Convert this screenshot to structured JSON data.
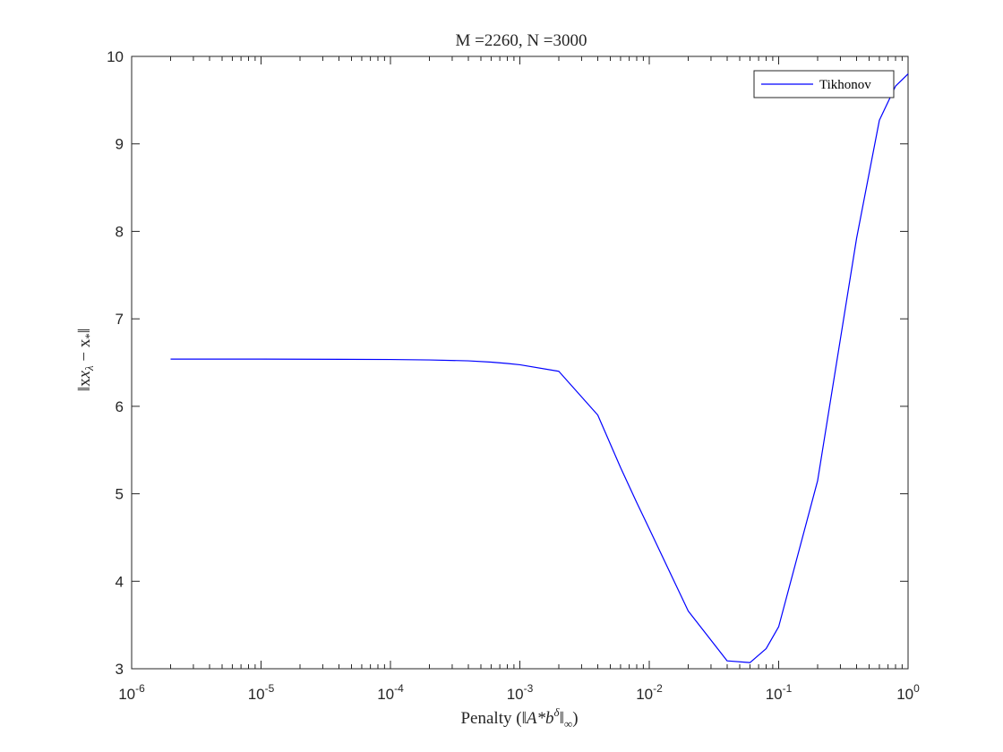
{
  "chart_data": {
    "type": "line",
    "title": "M =2260, N =3000",
    "xlabel_prefix": "Penalty (",
    "xlabel_math": "‖A*b",
    "xlabel_sup": "δ",
    "xlabel_suffix": "‖",
    "xlabel_sub": "∞",
    "xlabel_close": ")",
    "ylabel_left": "‖x",
    "ylabel_sub1": "λ",
    "ylabel_mid": " − x",
    "ylabel_sub2": "*",
    "ylabel_right": "‖",
    "x_scale": "log",
    "xlim": [
      1e-06,
      1
    ],
    "ylim": [
      3,
      10
    ],
    "x_ticks": [
      {
        "base": "10",
        "exp": "-6",
        "value": 1e-06
      },
      {
        "base": "10",
        "exp": "-5",
        "value": 1e-05
      },
      {
        "base": "10",
        "exp": "-4",
        "value": 0.0001
      },
      {
        "base": "10",
        "exp": "-3",
        "value": 0.001
      },
      {
        "base": "10",
        "exp": "-2",
        "value": 0.01
      },
      {
        "base": "10",
        "exp": "-1",
        "value": 0.1
      },
      {
        "base": "10",
        "exp": "0",
        "value": 1
      }
    ],
    "y_ticks": [
      "3",
      "4",
      "5",
      "6",
      "7",
      "8",
      "9",
      "10"
    ],
    "grid": false,
    "legend_position": "top-right",
    "colors": {
      "series": "#0000ff",
      "axes": "#262626",
      "background": "#ffffff"
    },
    "series": [
      {
        "name": "Tikhonov",
        "x": [
          2e-06,
          1e-05,
          0.0001,
          0.0002,
          0.0004,
          0.0006,
          0.0008,
          0.001,
          0.002,
          0.004,
          0.006,
          0.008,
          0.01,
          0.02,
          0.04,
          0.06,
          0.08,
          0.1,
          0.2,
          0.4,
          0.6,
          0.8,
          1.0
        ],
        "y": [
          6.54,
          6.54,
          6.535,
          6.53,
          6.52,
          6.505,
          6.49,
          6.475,
          6.4,
          5.9,
          5.3,
          4.9,
          4.6,
          3.66,
          3.09,
          3.07,
          3.23,
          3.48,
          5.15,
          7.92,
          9.27,
          9.66,
          9.8
        ]
      }
    ]
  }
}
